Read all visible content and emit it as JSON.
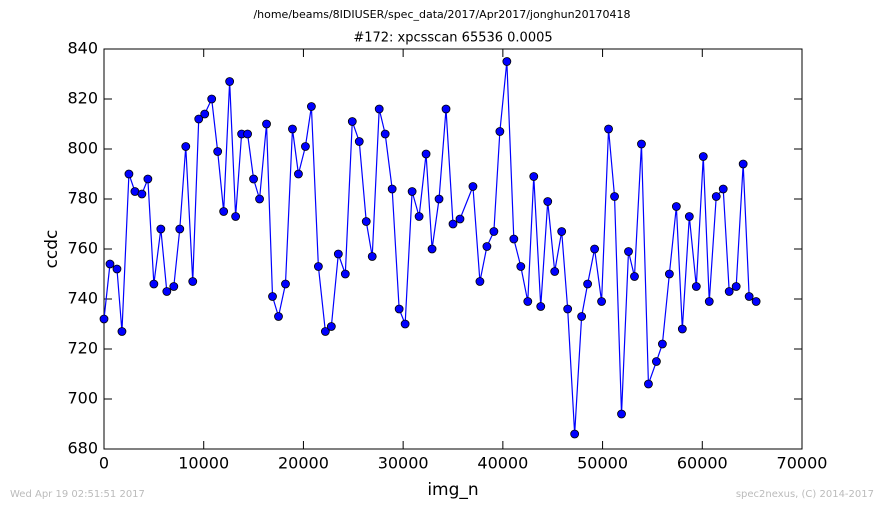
{
  "chart_data": {
    "type": "line",
    "suptitle": "/home/beams/8IDIUSER/spec_data/2017/Apr2017/jonghun20170418",
    "title": "#172: xpcsscan 65536 0.0005",
    "xlabel": "img_n",
    "ylabel": "ccdc",
    "footnotes": [
      "Wed Apr 19 02:51:51 2017",
      "spec2nexus, (C) 2014-2017"
    ],
    "color": "#0000ff",
    "marker_edge": "#000000",
    "xlim": [
      0,
      70000
    ],
    "xticks": [
      0,
      10000,
      20000,
      30000,
      40000,
      50000,
      60000,
      70000
    ],
    "ylim": [
      680,
      840
    ],
    "yticks": [
      680,
      700,
      720,
      740,
      760,
      780,
      800,
      820,
      840
    ],
    "x": [
      0,
      600,
      1300,
      1800,
      2500,
      3100,
      3800,
      4400,
      5000,
      5700,
      6300,
      7000,
      7600,
      8200,
      8900,
      9500,
      10100,
      10800,
      11400,
      12000,
      12600,
      13200,
      13800,
      14400,
      15000,
      15600,
      16300,
      16900,
      17500,
      18200,
      18900,
      19500,
      20200,
      20800,
      21500,
      22200,
      22800,
      23500,
      24200,
      24900,
      25600,
      26300,
      26900,
      27600,
      28200,
      28900,
      29600,
      30200,
      30900,
      31600,
      32300,
      32900,
      33600,
      34300,
      35000,
      35700,
      37000,
      37700,
      38400,
      39100,
      39700,
      40400,
      41100,
      41800,
      42500,
      43100,
      43800,
      44500,
      45200,
      45900,
      46500,
      47200,
      47900,
      48500,
      49200,
      49900,
      50600,
      51200,
      51900,
      52600,
      53200,
      53900,
      54600,
      55400,
      56000,
      56700,
      57400,
      58000,
      58700,
      59400,
      60100,
      60700,
      61400,
      62100,
      62700,
      63400,
      64100,
      64700,
      65400
    ],
    "values": [
      732,
      754,
      752,
      727,
      790,
      783,
      782,
      788,
      746,
      768,
      743,
      745,
      768,
      801,
      747,
      812,
      814,
      820,
      799,
      775,
      827,
      773,
      806,
      806,
      788,
      780,
      810,
      741,
      733,
      746,
      808,
      790,
      801,
      817,
      753,
      727,
      729,
      758,
      750,
      811,
      803,
      771,
      757,
      816,
      806,
      784,
      736,
      730,
      783,
      773,
      798,
      760,
      780,
      816,
      770,
      772,
      785,
      747,
      761,
      767,
      807,
      835,
      764,
      753,
      739,
      789,
      737,
      779,
      751,
      767,
      736,
      686,
      733,
      746,
      760,
      739,
      808,
      781,
      694,
      759,
      749,
      802,
      706,
      715,
      722,
      750,
      777,
      728,
      773,
      745,
      797,
      739,
      781,
      784,
      743,
      745,
      794,
      741,
      739
    ]
  }
}
